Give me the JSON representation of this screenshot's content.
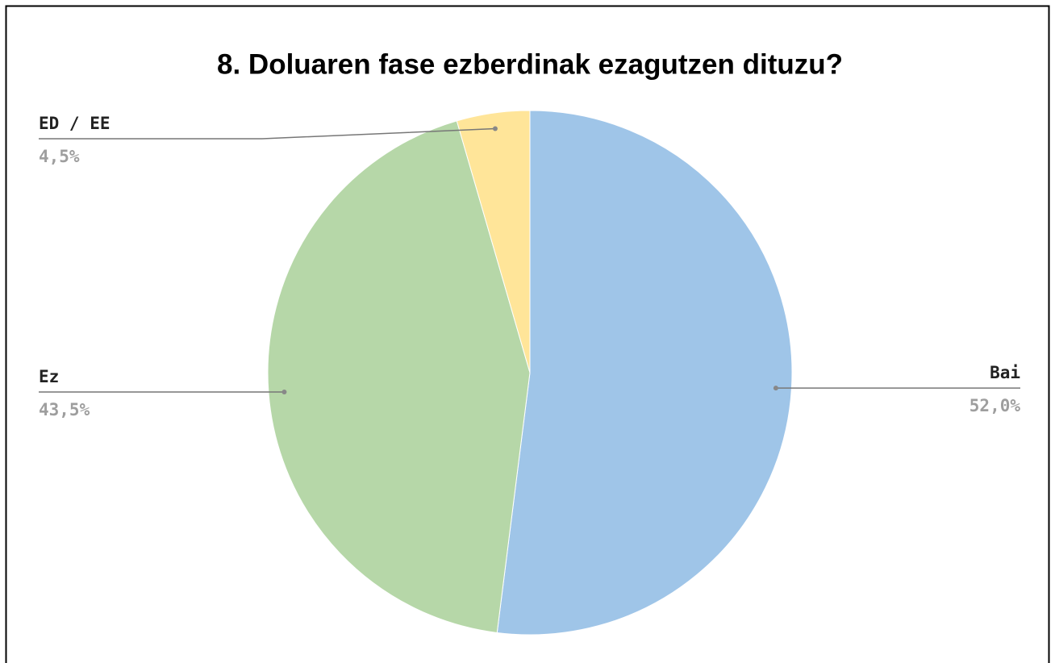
{
  "chart_data": {
    "type": "pie",
    "title": "8. Doluaren fase ezberdinak ezagutzen dituzu?",
    "categories": [
      "Bai",
      "Ez",
      "ED / EE"
    ],
    "values": [
      52.0,
      43.5,
      4.5
    ],
    "value_labels": [
      "52,0%",
      "43,5%",
      "4,5%"
    ],
    "colors": [
      "#9fc5e8",
      "#b6d7a8",
      "#ffe599"
    ]
  }
}
